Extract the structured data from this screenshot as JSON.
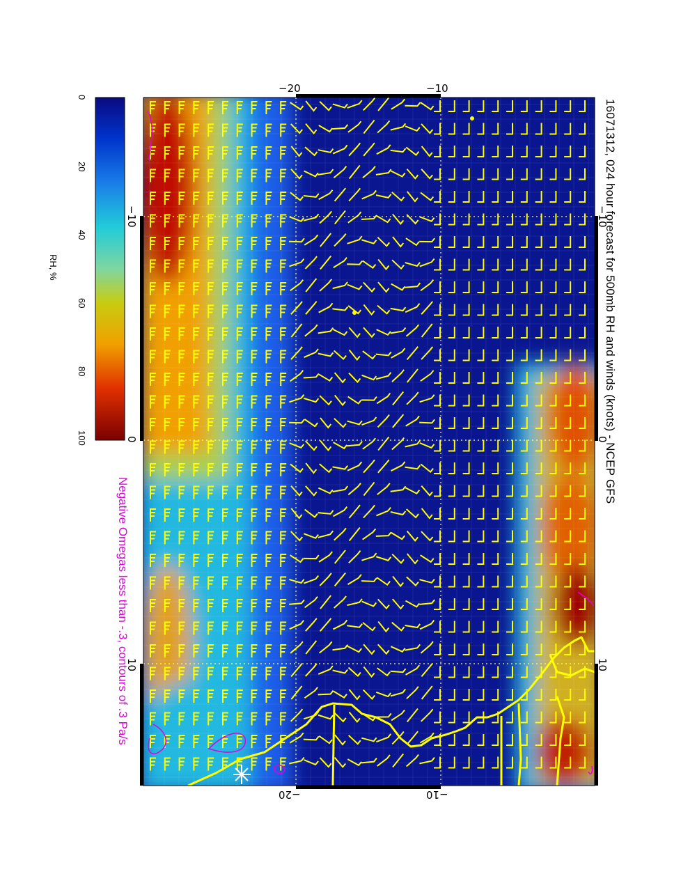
{
  "title": "16071312, 024 hour forecast for 500mb RH and winds (knots) - NCEP GFS",
  "subtitle": "Negative Omegas less than -.3, contours of .3 Pa/s",
  "colorbar": {
    "label": "RH, %",
    "ticks": [
      "0",
      "20",
      "40",
      "60",
      "80",
      "100"
    ]
  },
  "axes": {
    "top_ticks": [
      "−20",
      "−10"
    ],
    "bottom_ticks": [
      "−20",
      "−10"
    ],
    "left_ticks": [
      "−10",
      "0",
      "10"
    ],
    "right_ticks": [
      "−10",
      "0",
      "10"
    ]
  },
  "colors": {
    "wind_barb": "#ffff00",
    "coastline": "#ffff00",
    "omega_contour": "#e000e0",
    "gridline": "#ffff66",
    "rh_dry": "#00008b",
    "rh_wet": "#8b0000"
  }
}
